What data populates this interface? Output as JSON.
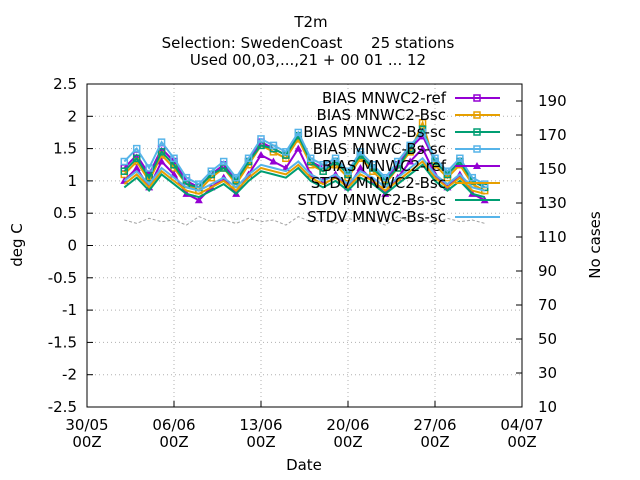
{
  "chart_data": {
    "type": "line",
    "title": [
      "T2m",
      "Selection: SwedenCoast      25 stations",
      "Used 00,03,...,21 + 00 01 ... 12"
    ],
    "xlabel": "Date",
    "ylabel": "deg C",
    "y2label": "No cases",
    "ylim": [
      -2.5,
      2.5
    ],
    "y2lim": [
      10,
      200
    ],
    "yticks": [
      "2.5",
      "2",
      "1.5",
      "1",
      "0.5",
      "0",
      "-0.5",
      "-1",
      "-1.5",
      "-2",
      "-2.5"
    ],
    "y2ticks": [
      "190",
      "170",
      "150",
      "130",
      "110",
      "90",
      "70",
      "50",
      "30",
      "10"
    ],
    "xticks": [
      {
        "line1": "30/05",
        "line2": "00Z"
      },
      {
        "line1": "06/06",
        "line2": "00Z"
      },
      {
        "line1": "13/06",
        "line2": "00Z"
      },
      {
        "line1": "20/06",
        "line2": "00Z"
      },
      {
        "line1": "27/06",
        "line2": "00Z"
      },
      {
        "line1": "04/07",
        "line2": "00Z"
      }
    ],
    "xlim": [
      "2023-05-30",
      "2023-07-04"
    ],
    "x_start": "2023-06-02",
    "x_end": "2023-07-01",
    "grid": true,
    "legend_position": "top-right",
    "series": [
      {
        "name": "BIAS MNWC2-ref",
        "color": "#9400d3",
        "marker": "square-open",
        "values": [
          1.2,
          1.4,
          1.1,
          1.5,
          1.3,
          1.0,
          0.9,
          1.1,
          1.25,
          1.0,
          1.3,
          1.6,
          1.5,
          1.4,
          1.7,
          1.3,
          1.2,
          1.3,
          1.1,
          1.4,
          1.2,
          1.0,
          1.25,
          1.5,
          1.7,
          1.3,
          1.1,
          1.3,
          1.0,
          0.9
        ]
      },
      {
        "name": "BIAS MNWC2-Bsc",
        "color": "#e69f00",
        "marker": "square-open",
        "values": [
          1.1,
          1.3,
          1.0,
          1.4,
          1.2,
          0.95,
          0.85,
          1.05,
          1.2,
          0.95,
          1.25,
          1.55,
          1.45,
          1.35,
          1.65,
          1.25,
          1.15,
          1.25,
          1.05,
          1.35,
          1.15,
          0.95,
          1.2,
          1.45,
          1.9,
          1.25,
          1.05,
          1.25,
          0.95,
          0.85
        ]
      },
      {
        "name": "BIAS MNWC2-Bs-sc",
        "color": "#009e73",
        "marker": "square-open",
        "values": [
          1.15,
          1.35,
          1.05,
          1.45,
          1.25,
          0.95,
          0.9,
          1.1,
          1.2,
          1.0,
          1.3,
          1.55,
          1.5,
          1.4,
          1.7,
          1.3,
          1.15,
          1.3,
          1.1,
          1.4,
          1.2,
          1.0,
          1.2,
          1.5,
          1.8,
          1.3,
          1.1,
          1.3,
          1.0,
          0.9
        ]
      },
      {
        "name": "BIAS MNWC-Bs-sc",
        "color": "#56b4e9",
        "marker": "square-open",
        "values": [
          1.3,
          1.5,
          1.2,
          1.6,
          1.35,
          1.05,
          0.95,
          1.15,
          1.3,
          1.05,
          1.35,
          1.65,
          1.55,
          1.45,
          1.75,
          1.35,
          1.25,
          1.35,
          1.15,
          1.45,
          1.25,
          1.05,
          1.3,
          1.55,
          1.75,
          1.35,
          1.15,
          1.35,
          1.05,
          0.95
        ]
      },
      {
        "name": "BIAS MNWC2-ref",
        "color": "#9400d3",
        "marker": "triangle-filled",
        "values": [
          1.0,
          1.2,
          0.9,
          1.3,
          1.1,
          0.8,
          0.7,
          0.9,
          1.05,
          0.8,
          1.1,
          1.4,
          1.3,
          1.2,
          1.5,
          1.1,
          1.0,
          1.1,
          0.9,
          1.2,
          1.0,
          0.8,
          1.05,
          1.3,
          1.5,
          1.1,
          0.9,
          1.1,
          0.8,
          0.7
        ]
      },
      {
        "name": "STDV MNWC2-Bsc",
        "color": "#e69f00",
        "marker": "none",
        "values": [
          0.95,
          1.1,
          0.9,
          1.15,
          1.0,
          0.85,
          0.8,
          0.9,
          1.0,
          0.85,
          1.05,
          1.2,
          1.15,
          1.1,
          1.25,
          1.05,
          0.95,
          1.05,
          0.9,
          1.1,
          1.0,
          0.85,
          1.0,
          1.15,
          1.3,
          1.05,
          0.9,
          1.05,
          0.85,
          0.8
        ]
      },
      {
        "name": "STDV MNWC2-Bs-sc",
        "color": "#009e73",
        "marker": "none",
        "values": [
          0.9,
          1.05,
          0.85,
          1.1,
          0.95,
          0.8,
          0.75,
          0.85,
          0.95,
          0.8,
          1.0,
          1.15,
          1.1,
          1.05,
          1.2,
          1.0,
          0.9,
          1.0,
          0.85,
          1.05,
          0.95,
          0.8,
          0.95,
          1.1,
          1.25,
          1.0,
          0.85,
          1.0,
          0.8,
          0.75
        ]
      },
      {
        "name": "STDV MNWC-Bs-sc",
        "color": "#56b4e9",
        "marker": "none",
        "values": [
          1.0,
          1.15,
          0.95,
          1.2,
          1.05,
          0.9,
          0.85,
          0.95,
          1.05,
          0.9,
          1.1,
          1.25,
          1.2,
          1.15,
          1.3,
          1.1,
          1.0,
          1.1,
          0.95,
          1.15,
          1.05,
          0.9,
          1.05,
          1.2,
          1.35,
          1.1,
          0.95,
          1.1,
          0.9,
          0.85
        ]
      },
      {
        "name": "No cases",
        "color": "#a0a0a0",
        "axis": "y2",
        "marker": "none",
        "values": [
          120,
          118,
          121,
          119,
          120,
          117,
          122,
          119,
          120,
          118,
          121,
          119,
          120,
          117,
          122,
          119,
          120,
          118,
          121,
          119,
          120,
          117,
          122,
          119,
          120,
          118,
          121,
          119,
          120,
          118
        ]
      }
    ]
  }
}
